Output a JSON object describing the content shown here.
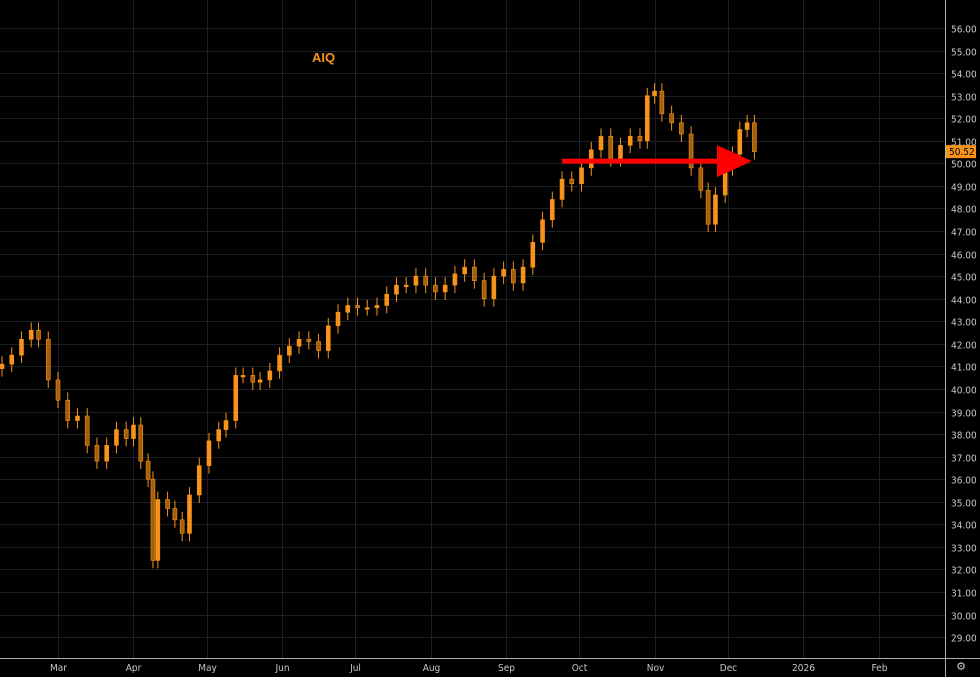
{
  "chart_data": {
    "type": "candlestick",
    "title": "AIQ",
    "last_price_label": "50.52",
    "ylim": [
      28.5,
      57
    ],
    "y_ticks": [
      "29.00",
      "30.00",
      "31.00",
      "32.00",
      "33.00",
      "34.00",
      "35.00",
      "36.00",
      "37.00",
      "38.00",
      "39.00",
      "40.00",
      "41.00",
      "42.00",
      "43.00",
      "44.00",
      "45.00",
      "46.00",
      "47.00",
      "48.00",
      "49.00",
      "50.00",
      "51.00",
      "52.00",
      "53.00",
      "54.00",
      "55.00",
      "56.00"
    ],
    "x_ticks": [
      {
        "label": "Mar",
        "date": "2025-03-01"
      },
      {
        "label": "Apr",
        "date": "2025-04-01"
      },
      {
        "label": "May",
        "date": "2025-05-01"
      },
      {
        "label": "Jun",
        "date": "2025-06-01"
      },
      {
        "label": "Jul",
        "date": "2025-07-01"
      },
      {
        "label": "Aug",
        "date": "2025-08-01"
      },
      {
        "label": "Sep",
        "date": "2025-09-01"
      },
      {
        "label": "Oct",
        "date": "2025-10-01"
      },
      {
        "label": "Nov",
        "date": "2025-11-01"
      },
      {
        "label": "Dec",
        "date": "2025-12-01"
      },
      {
        "label": "2026",
        "date": "2026-01-01"
      },
      {
        "label": "Feb",
        "date": "2026-02-01"
      }
    ],
    "xlim": [
      "2025-02-06",
      "2026-02-20"
    ],
    "grid": true,
    "colors": {
      "candle": "#f7931a",
      "candle_dark": "#a35f0c",
      "grid": "#1c1f26",
      "axis": "#b0b0b0",
      "arrow": "#ff0000",
      "price_tag": "#f7931a"
    },
    "candles": [
      [
        "2025-02-06",
        41.1
      ],
      [
        "2025-02-10",
        41.5
      ],
      [
        "2025-02-14",
        42.2
      ],
      [
        "2025-02-18",
        42.6
      ],
      [
        "2025-02-21",
        42.2
      ],
      [
        "2025-02-25",
        40.4
      ],
      [
        "2025-03-01",
        39.5
      ],
      [
        "2025-03-05",
        38.6
      ],
      [
        "2025-03-09",
        38.8
      ],
      [
        "2025-03-13",
        37.5
      ],
      [
        "2025-03-17",
        36.8
      ],
      [
        "2025-03-21",
        37.5
      ],
      [
        "2025-03-25",
        38.2
      ],
      [
        "2025-03-29",
        37.8
      ],
      [
        "2025-04-01",
        38.4
      ],
      [
        "2025-04-04",
        36.8
      ],
      [
        "2025-04-07",
        36.0
      ],
      [
        "2025-04-09",
        32.4
      ],
      [
        "2025-04-11",
        35.1
      ],
      [
        "2025-04-15",
        34.7
      ],
      [
        "2025-04-18",
        34.2
      ],
      [
        "2025-04-21",
        33.6
      ],
      [
        "2025-04-24",
        35.3
      ],
      [
        "2025-04-28",
        36.6
      ],
      [
        "2025-05-02",
        37.7
      ],
      [
        "2025-05-06",
        38.2
      ],
      [
        "2025-05-09",
        38.6
      ],
      [
        "2025-05-13",
        40.6
      ],
      [
        "2025-05-16",
        40.6
      ],
      [
        "2025-05-20",
        40.3
      ],
      [
        "2025-05-23",
        40.4
      ],
      [
        "2025-05-27",
        40.8
      ],
      [
        "2025-05-31",
        41.5
      ],
      [
        "2025-06-04",
        41.9
      ],
      [
        "2025-06-08",
        42.2
      ],
      [
        "2025-06-12",
        42.1
      ],
      [
        "2025-06-16",
        41.7
      ],
      [
        "2025-06-20",
        42.8
      ],
      [
        "2025-06-24",
        43.4
      ],
      [
        "2025-06-28",
        43.7
      ],
      [
        "2025-07-02",
        43.6
      ],
      [
        "2025-07-06",
        43.6
      ],
      [
        "2025-07-10",
        43.7
      ],
      [
        "2025-07-14",
        44.2
      ],
      [
        "2025-07-18",
        44.6
      ],
      [
        "2025-07-22",
        44.6
      ],
      [
        "2025-07-26",
        45.0
      ],
      [
        "2025-07-30",
        44.6
      ],
      [
        "2025-08-03",
        44.3
      ],
      [
        "2025-08-07",
        44.6
      ],
      [
        "2025-08-11",
        45.1
      ],
      [
        "2025-08-15",
        45.4
      ],
      [
        "2025-08-19",
        44.8
      ],
      [
        "2025-08-23",
        44.0
      ],
      [
        "2025-08-27",
        45.0
      ],
      [
        "2025-08-31",
        45.3
      ],
      [
        "2025-09-04",
        44.7
      ],
      [
        "2025-09-08",
        45.4
      ],
      [
        "2025-09-12",
        46.5
      ],
      [
        "2025-09-16",
        47.5
      ],
      [
        "2025-09-20",
        48.4
      ],
      [
        "2025-09-24",
        49.3
      ],
      [
        "2025-09-28",
        49.1
      ],
      [
        "2025-10-02",
        49.8
      ],
      [
        "2025-10-06",
        50.6
      ],
      [
        "2025-10-10",
        51.2
      ],
      [
        "2025-10-14",
        50.2
      ],
      [
        "2025-10-18",
        50.8
      ],
      [
        "2025-10-22",
        51.2
      ],
      [
        "2025-10-26",
        51.0
      ],
      [
        "2025-10-29",
        53.0
      ],
      [
        "2025-11-01",
        53.2
      ],
      [
        "2025-11-04",
        52.2
      ],
      [
        "2025-11-08",
        51.8
      ],
      [
        "2025-11-12",
        51.3
      ],
      [
        "2025-11-16",
        49.8
      ],
      [
        "2025-11-20",
        48.8
      ],
      [
        "2025-11-23",
        47.3
      ],
      [
        "2025-11-26",
        48.6
      ],
      [
        "2025-11-30",
        49.8
      ],
      [
        "2025-12-03",
        50.4
      ],
      [
        "2025-12-06",
        51.5
      ],
      [
        "2025-12-09",
        51.8
      ],
      [
        "2025-12-12",
        50.52
      ]
    ],
    "annotations": [
      {
        "type": "arrow",
        "from": [
          "2025-09-24",
          50.1
        ],
        "to": [
          "2025-12-11",
          50.1
        ],
        "color": "#ff0000"
      }
    ]
  },
  "ui": {
    "settings_icon": "gear-icon"
  }
}
